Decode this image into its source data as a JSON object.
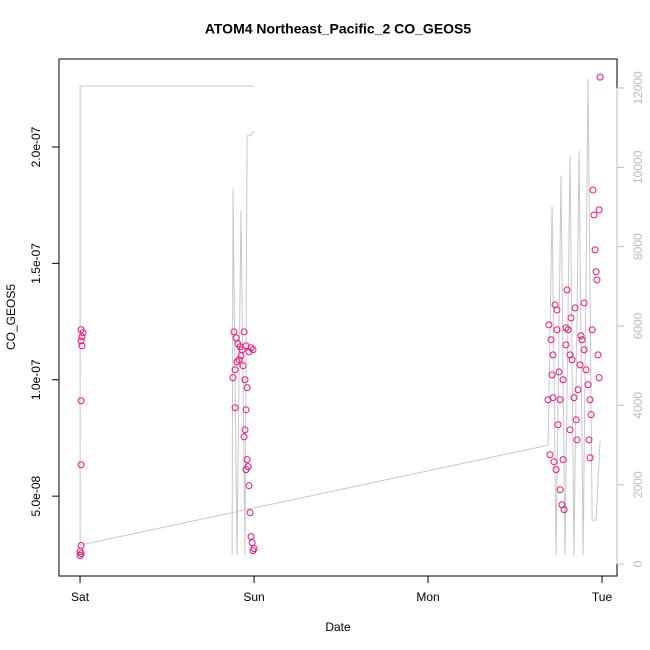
{
  "chart_data": {
    "type": "scatter",
    "title": "ATOM4 Northeast_Pacific_2 CO_GEOS5",
    "xlabel": "Date",
    "ylabel": "CO_GEOS5",
    "xlim": [
      -0.121,
      3.086
    ],
    "xticks": [
      {
        "value": 0,
        "label": "Sat"
      },
      {
        "value": 1,
        "label": "Sun"
      },
      {
        "value": 2,
        "label": "Mon"
      },
      {
        "value": 3,
        "label": "Tue"
      }
    ],
    "ylim": [
      1.57e-08,
      2.378e-07
    ],
    "yticks": [
      {
        "value": 5e-08,
        "label": "5.0e-08"
      },
      {
        "value": 1e-07,
        "label": "1.0e-07"
      },
      {
        "value": 1.5e-07,
        "label": "1.5e-07"
      },
      {
        "value": 2e-07,
        "label": "2.0e-07"
      }
    ],
    "y2lim": [
      -302,
      12730
    ],
    "y2ticks": [
      0,
      2000,
      4000,
      6000,
      8000,
      10000,
      12000
    ],
    "series": [
      {
        "color": "#ee1177",
        "x": [
          0.006,
          0.017,
          0.011,
          0.006,
          0.011,
          0.006,
          0.006,
          0.006,
          0,
          0,
          0.006,
          0.885,
          0.897,
          0.908,
          0.92,
          0.931,
          0.943,
          0.954,
          0.879,
          0.891,
          0.902,
          0.914,
          0.925,
          0.937,
          0.948,
          0.96,
          0.971,
          0.983,
          0.994,
          0.954,
          0.948,
          0.943,
          0.96,
          0.966,
          0.954,
          0.971,
          0.977,
          0.983,
          0.989,
          1.0,
          0.994,
          0.891,
          2.695,
          2.707,
          2.718,
          2.73,
          2.741,
          2.713,
          2.718,
          2.701,
          2.724,
          2.736,
          2.759,
          2.77,
          2.782,
          2.747,
          2.759,
          2.776,
          2.793,
          2.805,
          2.816,
          2.828,
          2.839,
          2.851,
          2.862,
          2.874,
          2.885,
          2.897,
          2.908,
          2.92,
          2.931,
          2.925,
          2.931,
          2.937,
          2.948,
          2.954,
          2.96,
          2.966,
          2.971,
          2.977,
          2.983,
          2.943,
          2.845,
          2.822,
          2.793,
          2.897,
          2.879,
          2.799,
          2.856,
          2.816,
          2.776,
          2.69,
          2.741,
          2.753,
          2.989,
          2.983
        ],
        "values": [
          1.215e-07,
          1.202e-07,
          1.185e-07,
          1.167e-07,
          1.146e-07,
          9.1e-08,
          6.35e-08,
          2.88e-08,
          2.62e-08,
          2.45e-08,
          2.53e-08,
          1.206e-07,
          1.18e-07,
          1.154e-07,
          1.142e-07,
          1.129e-07,
          1.206e-07,
          1.146e-07,
          1.009e-07,
          1.043e-07,
          1.077e-07,
          1.086e-07,
          1.103e-07,
          1.06e-07,
          1e-07,
          9.66e-08,
          1.12e-07,
          1.137e-07,
          1.129e-07,
          8.71e-08,
          7.85e-08,
          7.55e-08,
          6.57e-08,
          6.27e-08,
          6.14e-08,
          5.45e-08,
          4.29e-08,
          3.26e-08,
          3e-08,
          2.75e-08,
          2.66e-08,
          8.8e-08,
          1.236e-07,
          1.172e-07,
          1.107e-07,
          1.322e-07,
          1.3e-07,
          1.021e-07,
          9.23e-08,
          6.78e-08,
          6.48e-08,
          6.14e-08,
          5.28e-08,
          4.63e-08,
          4.42e-08,
          8.07e-08,
          9.14e-08,
          1e-07,
          1.15e-07,
          1.215e-07,
          1.107e-07,
          1.086e-07,
          9.23e-08,
          8.28e-08,
          9.57e-08,
          1.064e-07,
          1.172e-07,
          1.129e-07,
          1.043e-07,
          9.79e-08,
          9.14e-08,
          7.42e-08,
          6.65e-08,
          8.5e-08,
          1.815e-07,
          1.708e-07,
          1.558e-07,
          1.464e-07,
          1.429e-07,
          1.107e-07,
          1.009e-07,
          1.215e-07,
          1.309e-07,
          1.266e-07,
          1.223e-07,
          1.33e-07,
          1.189e-07,
          1.386e-07,
          7.42e-08,
          7.85e-08,
          6.57e-08,
          9.14e-08,
          1.215e-07,
          1.034e-07,
          2.3e-07,
          1.73e-07
        ]
      },
      {
        "axis": "y2",
        "color": "#c8c8c8",
        "x": [
          1.0,
          0,
          0,
          2.69,
          2.713,
          2.736,
          2.764,
          2.787,
          2.816,
          2.839,
          2.868,
          2.891,
          2.92,
          2.943,
          2.966,
          2.989,
          null,
          1.0,
          0.977,
          0.96,
          0.948,
          0.925,
          0.902,
          0.879,
          0.874
        ],
        "values": [
          12050,
          12050,
          478,
          2994,
          9032,
          226,
          9787,
          226,
          10290,
          226,
          10416,
          226,
          12228,
          1107,
          1107,
          3120,
          null,
          10919,
          10793,
          10793,
          226,
          8906,
          226,
          9460,
          226
        ]
      }
    ]
  }
}
